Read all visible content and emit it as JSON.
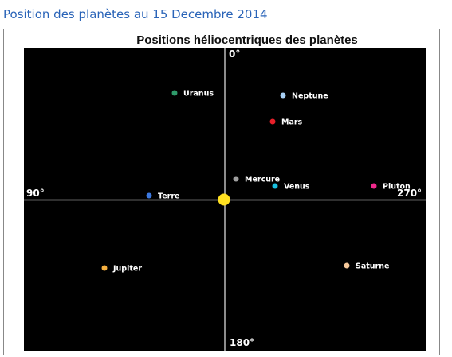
{
  "header": {
    "title": "Position des planètes au 15 Decembre 2014"
  },
  "diagram": {
    "title": "Positions héliocentriques des planètes",
    "axes": {
      "top": "0°",
      "left": "90°",
      "right": "270°",
      "bottom": "180°"
    },
    "planets": [
      {
        "label": "Uranus",
        "color": "#2e9a6a"
      },
      {
        "label": "Neptune",
        "color": "#a8d0f5"
      },
      {
        "label": "Mars",
        "color": "#e8202a"
      },
      {
        "label": "Mercure",
        "color": "#a0a0a0"
      },
      {
        "label": "Venus",
        "color": "#18c0e0"
      },
      {
        "label": "Pluton",
        "color": "#f0288c"
      },
      {
        "label": "Terre",
        "color": "#3c78e0"
      },
      {
        "label": "Jupiter",
        "color": "#f5b040"
      },
      {
        "label": "Saturne",
        "color": "#f5c89a"
      }
    ]
  }
}
